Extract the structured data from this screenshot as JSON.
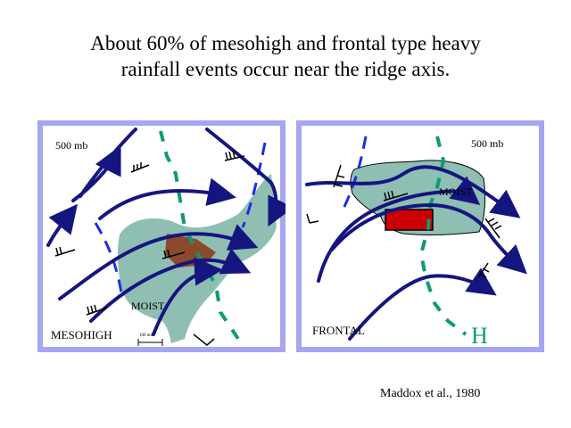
{
  "title": {
    "line1": "About 60% of mesohigh and frontal type heavy",
    "line2": "rainfall events occur near the ridge axis."
  },
  "left_panel": {
    "level_label": "500 mb",
    "moist_label": "MOIST",
    "type_label": "MESOHIGH",
    "scale_label": "100 nm"
  },
  "right_panel": {
    "level_label": "500 mb",
    "moist_label": "MOIST",
    "type_label": "FRONTAL",
    "high_label": "H"
  },
  "credit": "Maddox et al., 1980",
  "colors": {
    "frame": "#a6a6f2",
    "streamline": "#151580",
    "trough": "#1a2ee6",
    "ridge": "#0f9a72",
    "moist_fill": "#8fbfb2",
    "heavy_rain_left": "#8b4a2a",
    "heavy_rain_right": "#cc0000"
  }
}
